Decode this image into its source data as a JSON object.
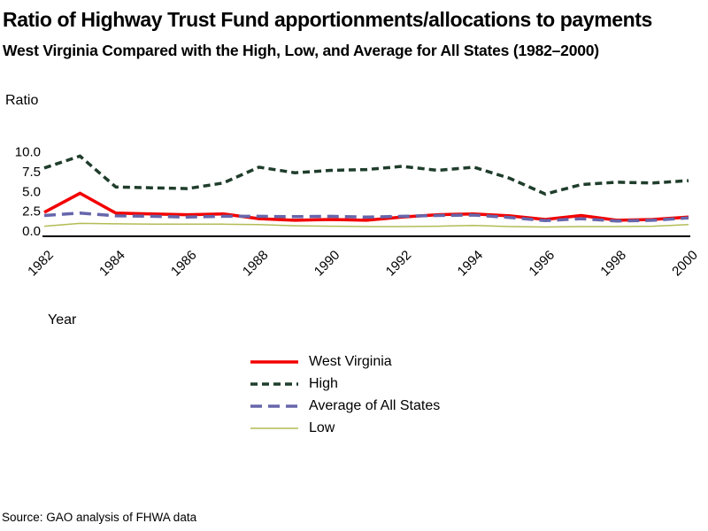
{
  "title": "Ratio of Highway Trust Fund apportionments/allocations to payments",
  "subtitle": "West Virginia Compared with the High, Low, and Average for All States (1982–2000)",
  "y_axis_label": "Ratio",
  "x_axis_label": "Year",
  "source": "Source: GAO analysis of FHWA data",
  "chart_data": {
    "type": "line",
    "title": "Ratio of Highway Trust Fund apportionments/allocations to payments",
    "xlabel": "Year",
    "ylabel": "Ratio",
    "ylim": [
      0,
      10
    ],
    "grid": false,
    "legend_position": "bottom-center",
    "axis_color": "#000000",
    "x": [
      1982,
      1983,
      1984,
      1985,
      1986,
      1987,
      1988,
      1989,
      1990,
      1991,
      1992,
      1993,
      1994,
      1995,
      1996,
      1997,
      1998,
      1999,
      2000
    ],
    "x_ticks": [
      1982,
      1984,
      1986,
      1988,
      1990,
      1992,
      1994,
      1996,
      1998,
      2000
    ],
    "y_ticks": [
      "10.0",
      "7.5",
      "5.0",
      "2.5",
      "0.0"
    ],
    "series": [
      {
        "name": "West Virginia",
        "color": "#f20000",
        "width": 3.5,
        "dash": null,
        "values": [
          2.3,
          4.7,
          2.2,
          2.1,
          2.0,
          2.1,
          1.5,
          1.3,
          1.4,
          1.3,
          1.7,
          2.0,
          2.1,
          1.85,
          1.4,
          1.9,
          1.3,
          1.4,
          1.7
        ]
      },
      {
        "name": "High",
        "color": "#1f3d2b",
        "width": 3.5,
        "dash": "8 5",
        "values": [
          7.9,
          9.4,
          5.5,
          5.4,
          5.3,
          6.0,
          8.0,
          7.3,
          7.6,
          7.7,
          8.1,
          7.6,
          8.0,
          6.6,
          4.6,
          5.8,
          6.1,
          6.0,
          6.3
        ]
      },
      {
        "name": "Average of All States",
        "color": "#6666ab",
        "width": 3.5,
        "dash": "13 7",
        "values": [
          1.9,
          2.2,
          1.85,
          1.8,
          1.7,
          1.8,
          1.8,
          1.75,
          1.8,
          1.7,
          1.8,
          1.9,
          1.95,
          1.65,
          1.25,
          1.5,
          1.2,
          1.3,
          1.6
        ]
      },
      {
        "name": "Low",
        "color": "#b3bc55",
        "width": 1.5,
        "dash": null,
        "values": [
          0.55,
          0.9,
          0.85,
          0.8,
          0.8,
          0.8,
          0.75,
          0.6,
          0.55,
          0.5,
          0.5,
          0.55,
          0.65,
          0.5,
          0.45,
          0.5,
          0.5,
          0.55,
          0.75
        ]
      }
    ]
  }
}
